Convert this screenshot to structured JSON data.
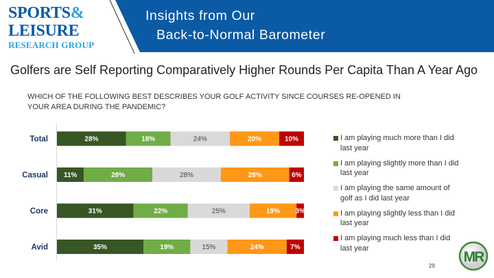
{
  "header": {
    "logo": {
      "line1": "SPORTS",
      "amp": "&",
      "line2": "LEISURE",
      "line3": "RESEARCH GROUP"
    },
    "title_line1": "Insights from Our",
    "title_line2": "Back-to-Normal Barometer",
    "band_color": "#0b5aa6"
  },
  "subtitle": "Golfers are Self Reporting Comparatively Higher Rounds Per Capita Than A Year Ago",
  "question": "WHICH OF THE FOLLOWING BEST DESCRIBES YOUR GOLF ACTIVITY SINCE COURSES RE-OPENED IN YOUR AREA DURING THE PANDEMIC?",
  "chart_data": {
    "type": "bar",
    "orientation": "horizontal",
    "stacked": "100%",
    "categories": [
      "Total",
      "Casual",
      "Core",
      "Avid"
    ],
    "series": [
      {
        "name": "I am playing much more than I did last year",
        "color": "#375623",
        "values": [
          28,
          11,
          31,
          35
        ],
        "labels": [
          "28%",
          "11%",
          "31%",
          "35%"
        ]
      },
      {
        "name": "I am playing slightly more than I did last year",
        "color": "#70ad47",
        "values": [
          18,
          28,
          22,
          19
        ],
        "labels": [
          "18%",
          "28%",
          "22%",
          "19%"
        ]
      },
      {
        "name": "I am playing the same amount of golf as I did last year",
        "color": "#d9d9d9",
        "values": [
          24,
          28,
          25,
          15
        ],
        "labels": [
          "24%",
          "28%",
          "25%",
          "15%"
        ]
      },
      {
        "name": "I am playing slightly less than I did last year",
        "color": "#ff9717",
        "values": [
          20,
          28,
          19,
          24
        ],
        "labels": [
          "20%",
          "28%",
          "19%",
          "24%"
        ]
      },
      {
        "name": "I am playing much less than I did last year",
        "color": "#c00000",
        "values": [
          10,
          6,
          3,
          7
        ],
        "labels": [
          "10%",
          "6%",
          "3%",
          "7%"
        ]
      }
    ],
    "legend_position": "right",
    "grid": false
  },
  "page_number": "29",
  "footer_logo": "MR"
}
